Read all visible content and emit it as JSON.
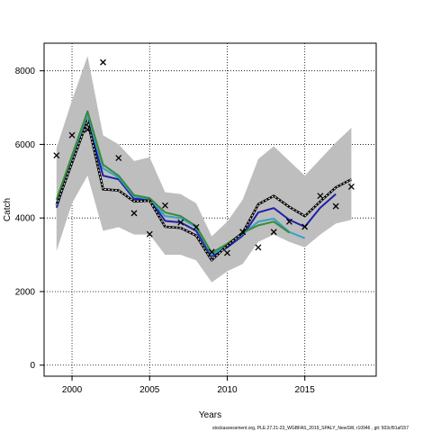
{
  "footer": "stockassessment.org, PLE.27.21-23_WGBFAS_2019_SPALY_NewSW, r10946 , git: 503cf91af157",
  "chart_data": {
    "type": "line",
    "xlabel": "Years",
    "ylabel": "Catch",
    "xlim": [
      1998.2,
      2019.6
    ],
    "ylim": [
      -300,
      8750
    ],
    "xticks": [
      2000,
      2005,
      2010,
      2015
    ],
    "yticks": [
      0,
      2000,
      4000,
      6000,
      8000
    ],
    "grid": true,
    "grid_style": "dotted",
    "band": {
      "color": "#bebebe",
      "x": [
        1999,
        2000,
        2001,
        2002,
        2003,
        2004,
        2005,
        2006,
        2007,
        2008,
        2009,
        2010,
        2011,
        2012,
        2013,
        2014,
        2015,
        2016,
        2017,
        2018
      ],
      "upper": [
        5900,
        7200,
        8400,
        6250,
        6000,
        5550,
        5650,
        4700,
        4650,
        4400,
        3500,
        3900,
        4500,
        5600,
        5950,
        5550,
        5150,
        5600,
        6050,
        6450
      ],
      "lower": [
        3100,
        4400,
        5150,
        3650,
        3750,
        3550,
        3550,
        3000,
        3000,
        2850,
        2250,
        2550,
        2750,
        3350,
        3550,
        3350,
        3200,
        3550,
        3850,
        3950
      ]
    },
    "series": [
      {
        "color": "#000000",
        "style": "dashed-white",
        "x": [
          1999,
          2000,
          2001,
          2002,
          2003,
          2004,
          2005,
          2006,
          2007,
          2008,
          2009,
          2010,
          2011,
          2012,
          2013,
          2014,
          2015,
          2016,
          2017,
          2018
        ],
        "values": [
          4350,
          5500,
          6650,
          4780,
          4750,
          4450,
          4470,
          3760,
          3730,
          3520,
          2850,
          3250,
          3600,
          4370,
          4600,
          4300,
          4050,
          4450,
          4830,
          5050
        ]
      },
      {
        "color": "#1f1fa8",
        "style": "solid",
        "x": [
          1999,
          2000,
          2001,
          2002,
          2003,
          2004,
          2005,
          2006,
          2007,
          2008,
          2009,
          2010,
          2011,
          2012,
          2013,
          2014,
          2015,
          2016,
          2017
        ],
        "values": [
          4280,
          5550,
          6650,
          5150,
          5050,
          4520,
          4520,
          3920,
          3880,
          3650,
          2960,
          3200,
          3520,
          4150,
          4270,
          3950,
          3760,
          4280,
          4650
        ]
      },
      {
        "color": "#36a2c4",
        "style": "solid",
        "x": [
          1999,
          2000,
          2001,
          2002,
          2003,
          2004,
          2005,
          2006,
          2007,
          2008,
          2009,
          2010,
          2011,
          2012,
          2013,
          2014,
          2015
        ],
        "values": [
          4400,
          5600,
          6800,
          5350,
          5100,
          4580,
          4520,
          4050,
          4000,
          3750,
          3000,
          3250,
          3560,
          3900,
          3980,
          3620,
          3450
        ]
      },
      {
        "color": "#3a8a3a",
        "style": "solid",
        "x": [
          1999,
          2000,
          2001,
          2002,
          2003,
          2004,
          2005,
          2006,
          2007,
          2008,
          2009,
          2010,
          2011,
          2012,
          2013,
          2014
        ],
        "values": [
          4500,
          5700,
          6900,
          5450,
          5150,
          4620,
          4540,
          4150,
          4050,
          3780,
          3050,
          3300,
          3600,
          3800,
          3900,
          3600
        ]
      }
    ],
    "observations": {
      "marker": "x",
      "x": [
        1999,
        2000,
        2001,
        2002,
        2003,
        2004,
        2005,
        2006,
        2007,
        2008,
        2009,
        2010,
        2011,
        2012,
        2013,
        2014,
        2015,
        2016,
        2017,
        2018
      ],
      "values": [
        5700,
        6250,
        6400,
        8230,
        5630,
        4130,
        3560,
        4340,
        3880,
        3750,
        3080,
        3050,
        3620,
        3200,
        3620,
        3900,
        3760,
        4600,
        4320,
        4850
      ]
    }
  }
}
